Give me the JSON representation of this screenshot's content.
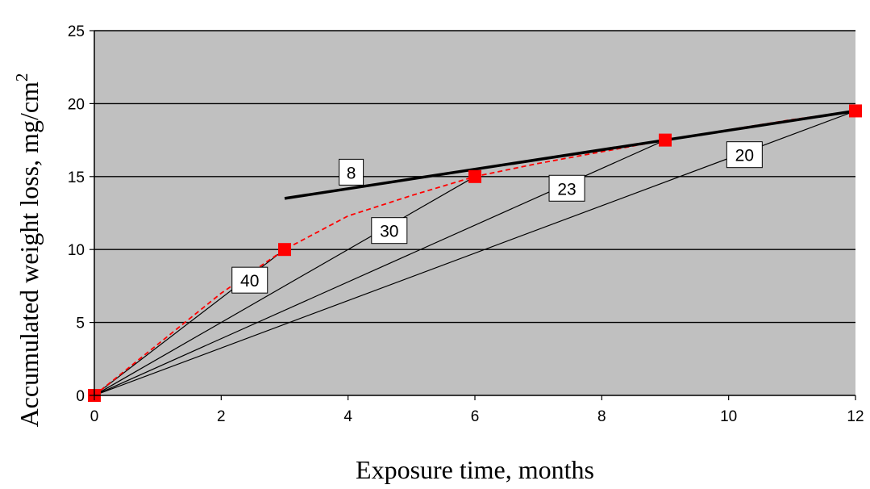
{
  "chart_data": {
    "type": "line",
    "title": "",
    "xlabel": "Exposure time, months",
    "ylabel": "Accumulated weight loss, mg/cm",
    "ylabel_sup": "2",
    "xlim": [
      0,
      12
    ],
    "ylim": [
      0,
      25
    ],
    "x_ticks": [
      0,
      2,
      4,
      6,
      8,
      10,
      12
    ],
    "y_ticks": [
      0,
      5,
      10,
      15,
      20,
      25
    ],
    "grid": "horizontal",
    "plot_background": "#c0c0c0",
    "series": [
      {
        "style": "dashed-red",
        "color": "#ff0000",
        "x": [
          0,
          1,
          2,
          3,
          4,
          4.5,
          5,
          6,
          7,
          8,
          9,
          10,
          11,
          12
        ],
        "y": [
          0,
          3.5,
          7,
          10,
          12.3,
          13,
          13.7,
          15,
          15.9,
          16.7,
          17.5,
          18.2,
          18.9,
          19.5
        ]
      },
      {
        "style": "markers",
        "color": "#ff0000",
        "x": [
          0,
          3,
          6,
          9,
          12
        ],
        "y": [
          0,
          10,
          15,
          17.5,
          19.5
        ]
      },
      {
        "style": "thick-black",
        "color": "#000000",
        "x": [
          3,
          12
        ],
        "y": [
          13.5,
          19.5
        ]
      }
    ],
    "rays": [
      {
        "label": "40",
        "x": [
          0,
          3
        ],
        "y": [
          0,
          10
        ],
        "label_at": [
          2.45,
          7.9
        ]
      },
      {
        "label": "30",
        "x": [
          0,
          6
        ],
        "y": [
          0,
          15
        ],
        "label_at": [
          4.65,
          11.3
        ]
      },
      {
        "label": "23",
        "x": [
          0,
          9
        ],
        "y": [
          0,
          17.5
        ],
        "label_at": [
          7.45,
          14.2
        ]
      },
      {
        "label": "20",
        "x": [
          0,
          12
        ],
        "y": [
          0,
          19.5
        ],
        "label_at": [
          10.25,
          16.5
        ]
      },
      {
        "label": "8",
        "x": null,
        "y": null,
        "label_at": [
          4.05,
          15.3
        ]
      }
    ]
  }
}
